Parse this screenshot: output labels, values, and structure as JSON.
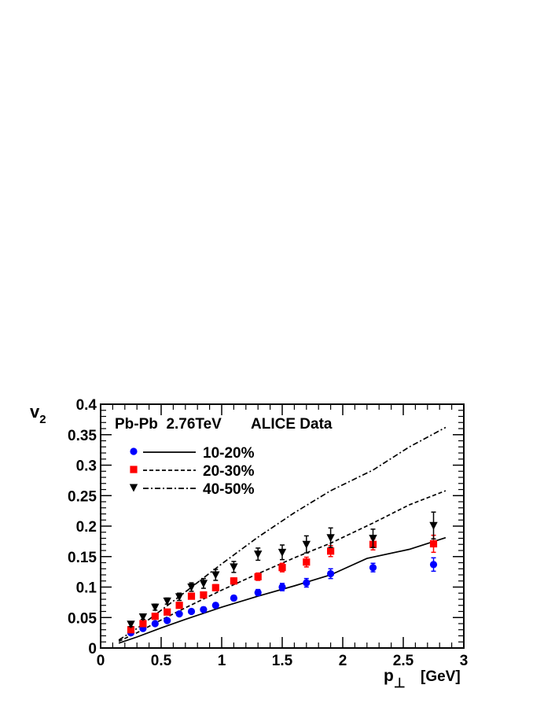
{
  "chart_data": {
    "type": "scatter",
    "annotation_left": "Pb-Pb  2.76TeV",
    "annotation_right": "ALICE Data",
    "ylabel_main": "v",
    "ylabel_sub": "2",
    "xlabel_main": "p",
    "xlabel_sub": "⊥",
    "xlabel_unit": "[GeV]",
    "xlim": [
      0,
      3
    ],
    "ylim": [
      0,
      0.4
    ],
    "x_ticks": [
      "0",
      "0.5",
      "1",
      "1.5",
      "2",
      "2.5",
      "3"
    ],
    "y_ticks": [
      "0",
      "0.05",
      "0.1",
      "0.15",
      "0.2",
      "0.25",
      "0.3",
      "0.35",
      "0.4"
    ],
    "legend_placement": "top-left",
    "series": [
      {
        "name": "10-20%",
        "marker": "circle",
        "color": "#0000ff",
        "line_style": "solid",
        "points": [
          {
            "x": 0.25,
            "y": 0.025,
            "err": 0.003
          },
          {
            "x": 0.35,
            "y": 0.032,
            "err": 0.003
          },
          {
            "x": 0.45,
            "y": 0.04,
            "err": 0.003
          },
          {
            "x": 0.55,
            "y": 0.045,
            "err": 0.003
          },
          {
            "x": 0.65,
            "y": 0.056,
            "err": 0.003
          },
          {
            "x": 0.75,
            "y": 0.06,
            "err": 0.003
          },
          {
            "x": 0.85,
            "y": 0.063,
            "err": 0.004
          },
          {
            "x": 0.95,
            "y": 0.07,
            "err": 0.004
          },
          {
            "x": 1.1,
            "y": 0.082,
            "err": 0.004
          },
          {
            "x": 1.3,
            "y": 0.091,
            "err": 0.005
          },
          {
            "x": 1.5,
            "y": 0.1,
            "err": 0.006
          },
          {
            "x": 1.7,
            "y": 0.107,
            "err": 0.007
          },
          {
            "x": 1.9,
            "y": 0.122,
            "err": 0.008
          },
          {
            "x": 2.25,
            "y": 0.132,
            "err": 0.007
          },
          {
            "x": 2.75,
            "y": 0.137,
            "err": 0.011
          }
        ],
        "model_curve": [
          [
            0.15,
            0.008
          ],
          [
            0.3,
            0.018
          ],
          [
            0.5,
            0.033
          ],
          [
            0.7,
            0.047
          ],
          [
            1.0,
            0.067
          ],
          [
            1.3,
            0.085
          ],
          [
            1.6,
            0.102
          ],
          [
            1.9,
            0.12
          ],
          [
            2.2,
            0.147
          ],
          [
            2.55,
            0.162
          ],
          [
            2.85,
            0.181
          ]
        ]
      },
      {
        "name": "20-30%",
        "marker": "square",
        "color": "#ff0000",
        "line_style": "dashed",
        "points": [
          {
            "x": 0.25,
            "y": 0.03,
            "err": 0.003
          },
          {
            "x": 0.35,
            "y": 0.04,
            "err": 0.003
          },
          {
            "x": 0.45,
            "y": 0.052,
            "err": 0.003
          },
          {
            "x": 0.55,
            "y": 0.059,
            "err": 0.003
          },
          {
            "x": 0.65,
            "y": 0.07,
            "err": 0.004
          },
          {
            "x": 0.75,
            "y": 0.085,
            "err": 0.004
          },
          {
            "x": 0.85,
            "y": 0.087,
            "err": 0.004
          },
          {
            "x": 0.95,
            "y": 0.099,
            "err": 0.005
          },
          {
            "x": 1.1,
            "y": 0.11,
            "err": 0.005
          },
          {
            "x": 1.3,
            "y": 0.117,
            "err": 0.006
          },
          {
            "x": 1.5,
            "y": 0.132,
            "err": 0.007
          },
          {
            "x": 1.7,
            "y": 0.141,
            "err": 0.008
          },
          {
            "x": 1.9,
            "y": 0.159,
            "err": 0.009
          },
          {
            "x": 2.25,
            "y": 0.17,
            "err": 0.009
          },
          {
            "x": 2.75,
            "y": 0.171,
            "err": 0.014
          }
        ],
        "model_curve": [
          [
            0.15,
            0.011
          ],
          [
            0.3,
            0.025
          ],
          [
            0.5,
            0.046
          ],
          [
            0.7,
            0.066
          ],
          [
            1.0,
            0.095
          ],
          [
            1.3,
            0.122
          ],
          [
            1.6,
            0.148
          ],
          [
            1.9,
            0.172
          ],
          [
            2.25,
            0.205
          ],
          [
            2.55,
            0.235
          ],
          [
            2.85,
            0.258
          ]
        ]
      },
      {
        "name": "40-50%",
        "marker": "triangle-down",
        "color": "#000000",
        "line_style": "dash-dot",
        "points": [
          {
            "x": 0.25,
            "y": 0.039,
            "err": 0.004
          },
          {
            "x": 0.35,
            "y": 0.051,
            "err": 0.004
          },
          {
            "x": 0.45,
            "y": 0.067,
            "err": 0.005
          },
          {
            "x": 0.55,
            "y": 0.077,
            "err": 0.005
          },
          {
            "x": 0.65,
            "y": 0.084,
            "err": 0.006
          },
          {
            "x": 0.75,
            "y": 0.1,
            "err": 0.007
          },
          {
            "x": 0.85,
            "y": 0.106,
            "err": 0.008
          },
          {
            "x": 0.95,
            "y": 0.12,
            "err": 0.009
          },
          {
            "x": 1.1,
            "y": 0.133,
            "err": 0.009
          },
          {
            "x": 1.3,
            "y": 0.154,
            "err": 0.01
          },
          {
            "x": 1.5,
            "y": 0.157,
            "err": 0.012
          },
          {
            "x": 1.7,
            "y": 0.17,
            "err": 0.014
          },
          {
            "x": 1.9,
            "y": 0.181,
            "err": 0.016
          },
          {
            "x": 2.25,
            "y": 0.18,
            "err": 0.015
          },
          {
            "x": 2.75,
            "y": 0.201,
            "err": 0.022
          }
        ],
        "model_curve": [
          [
            0.15,
            0.013
          ],
          [
            0.3,
            0.032
          ],
          [
            0.5,
            0.062
          ],
          [
            0.7,
            0.092
          ],
          [
            1.0,
            0.138
          ],
          [
            1.3,
            0.182
          ],
          [
            1.6,
            0.222
          ],
          [
            1.9,
            0.258
          ],
          [
            2.25,
            0.292
          ],
          [
            2.55,
            0.33
          ],
          [
            2.85,
            0.362
          ]
        ]
      }
    ]
  }
}
